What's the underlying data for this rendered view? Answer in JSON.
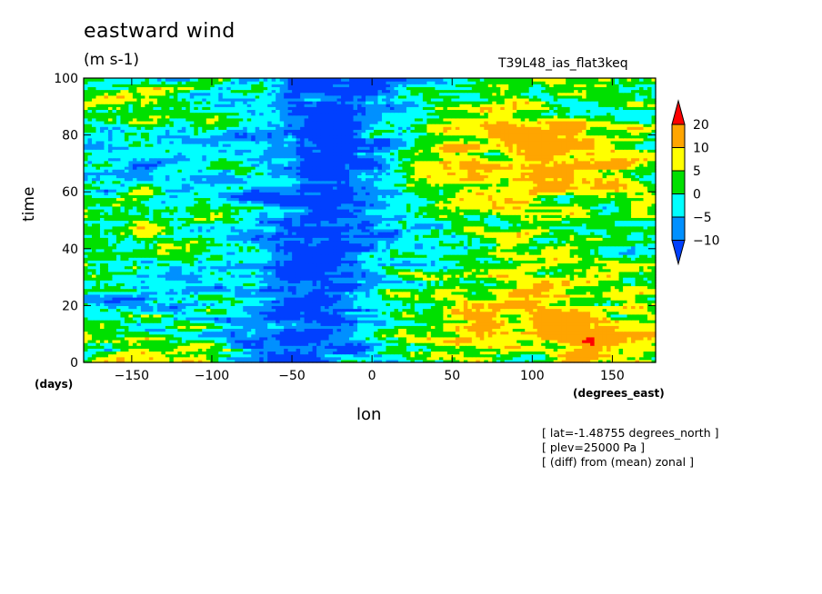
{
  "chart_data": {
    "type": "heatmap",
    "title": "eastward wind",
    "units": "(m s-1)",
    "run_id": "T39L48_ias_flat3keq",
    "xlabel": "lon",
    "ylabel": "time",
    "x_units": "(degrees_east)",
    "y_units": "(days)",
    "xlim": [
      -180,
      177
    ],
    "ylim": [
      0,
      100
    ],
    "x_ticks": [
      -150,
      -100,
      -50,
      0,
      50,
      100,
      150
    ],
    "y_ticks": [
      0,
      20,
      40,
      60,
      80,
      100
    ],
    "colorbar": {
      "levels": [
        "20",
        "10",
        "5",
        "0",
        "-5",
        "-10"
      ],
      "colors": [
        "#ff0000",
        "#ffa500",
        "#ffff00",
        "#00e000",
        "#00ffff",
        "#0090ff",
        "#0040ff"
      ]
    },
    "field_structure": "easterly (negative) band centred near -50 to -20 lon across all times; westerly (positive) values east of 0 lon, strongest near 80-130 lon around day 80 and day 10",
    "notes": [
      "[ lat=-1.48755 degrees_north ]",
      "[ plev=25000 Pa ]",
      "[ (diff) from (mean) zonal ]"
    ]
  }
}
